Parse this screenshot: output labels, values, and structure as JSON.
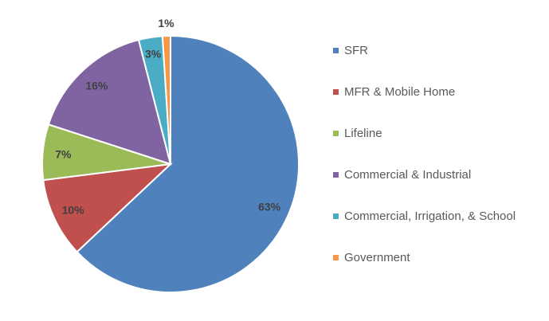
{
  "chart_data": {
    "type": "pie",
    "title": "",
    "start": "top",
    "direction": "clockwise",
    "legend_position": "right",
    "categories": [
      "SFR",
      "MFR & Mobile Home",
      "Lifeline",
      "Commercial & Industrial",
      "Commercial, Irrigation, & School",
      "Government"
    ],
    "values": [
      63,
      10,
      7,
      16,
      3,
      1
    ],
    "labels": [
      "63%",
      "10%",
      "7%",
      "16%",
      "3%",
      "1%"
    ],
    "colors": [
      "#4F81BD",
      "#C0504D",
      "#9BBB59",
      "#8064A2",
      "#4BACC6",
      "#F79646"
    ]
  }
}
